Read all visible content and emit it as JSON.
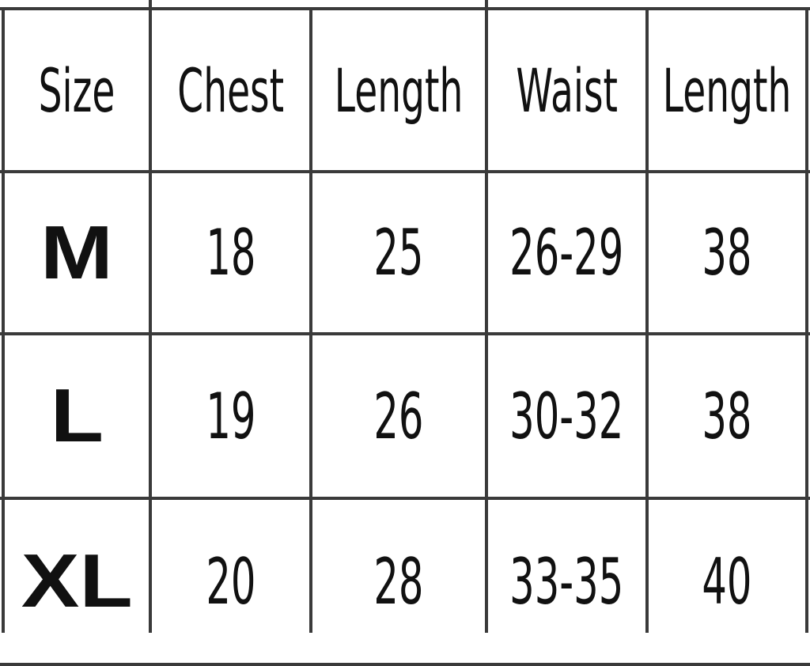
{
  "table": {
    "headers": [
      "Size",
      "Chest",
      "Length",
      "Waist",
      "Length"
    ],
    "rows": [
      {
        "size": "M",
        "values": [
          "18",
          "25",
          "26-29",
          "38"
        ]
      },
      {
        "size": "L",
        "values": [
          "19",
          "26",
          "30-32",
          "38"
        ]
      },
      {
        "size": "XL",
        "values": [
          "20",
          "28",
          "33-35",
          "40"
        ]
      }
    ]
  }
}
